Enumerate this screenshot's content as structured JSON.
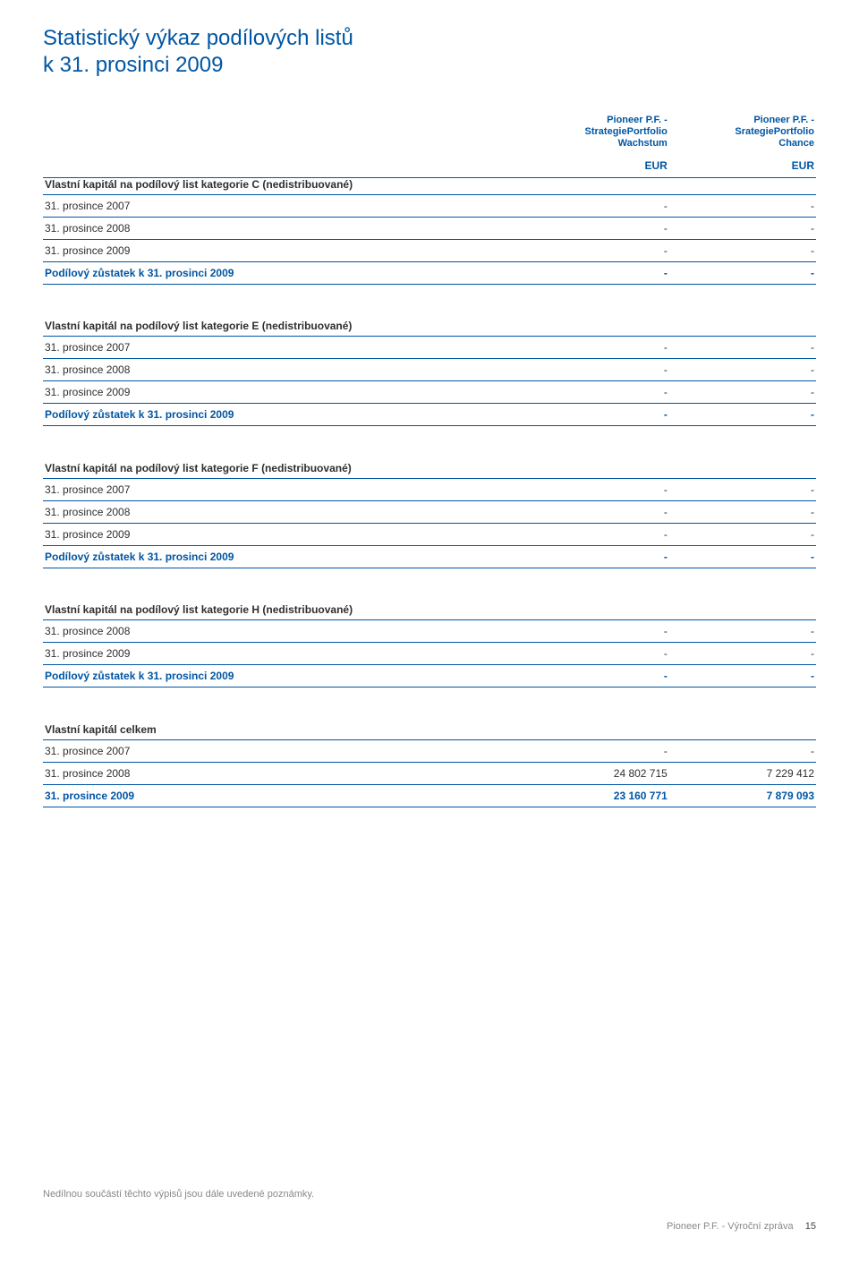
{
  "title": {
    "line1": "Statistický výkaz podílových listů",
    "line2": "k 31. prosinci 2009"
  },
  "columns": [
    {
      "name": "Pioneer P.F. -\nStrategiePortfolio\nWachstum",
      "currency": "EUR"
    },
    {
      "name": "Pioneer P.F. -\nSrategiePortfolio\nChance",
      "currency": "EUR"
    }
  ],
  "sections": [
    {
      "header": "Vlastní kapitál na podílový list kategorie C (nedistribuované)",
      "rows": [
        {
          "label": "31. prosince 2007",
          "v1": "-",
          "v2": "-"
        },
        {
          "label": "31. prosince 2008",
          "v1": "-",
          "v2": "-"
        },
        {
          "label": "31. prosince 2009",
          "v1": "-",
          "v2": "-"
        }
      ],
      "balance": {
        "label": "Podílový zůstatek k 31. prosinci 2009",
        "v1": "-",
        "v2": "-"
      }
    },
    {
      "header": "Vlastní kapitál na podílový list kategorie E (nedistribuované)",
      "rows": [
        {
          "label": "31. prosince 2007",
          "v1": "-",
          "v2": "-"
        },
        {
          "label": "31. prosince 2008",
          "v1": "-",
          "v2": "-"
        },
        {
          "label": "31. prosince 2009",
          "v1": "-",
          "v2": "-"
        }
      ],
      "balance": {
        "label": "Podílový zůstatek k 31. prosinci 2009",
        "v1": "-",
        "v2": "-"
      }
    },
    {
      "header": "Vlastní kapitál na podílový list kategorie F (nedistribuované)",
      "rows": [
        {
          "label": "31. prosince 2007",
          "v1": "-",
          "v2": "-"
        },
        {
          "label": "31. prosince 2008",
          "v1": "-",
          "v2": "-"
        },
        {
          "label": "31. prosince 2009",
          "v1": "-",
          "v2": "-"
        }
      ],
      "balance": {
        "label": "Podílový zůstatek k 31. prosinci 2009",
        "v1": "-",
        "v2": "-"
      }
    },
    {
      "header": "Vlastní kapitál na podílový list kategorie H (nedistribuované)",
      "rows": [
        {
          "label": "31. prosince 2008",
          "v1": "-",
          "v2": "-"
        },
        {
          "label": "31. prosince 2009",
          "v1": "-",
          "v2": "-"
        }
      ],
      "balance": {
        "label": "Podílový zůstatek k 31. prosinci 2009",
        "v1": "-",
        "v2": "-"
      }
    },
    {
      "header": "Vlastní kapitál celkem",
      "rows": [
        {
          "label": "31. prosince 2007",
          "v1": "-",
          "v2": "-"
        },
        {
          "label": "31. prosince 2008",
          "v1": "24 802 715",
          "v2": "7 229 412"
        },
        {
          "label": "31. prosince 2009",
          "v1": "23 160 771",
          "v2": "7 879 093",
          "blue": true
        }
      ]
    }
  ],
  "footer": {
    "note": "Nedílnou součástí těchto výpisů jsou dále uvedené poznámky.",
    "right_label": "Pioneer P.F. - Výroční zpráva",
    "page": "15"
  }
}
